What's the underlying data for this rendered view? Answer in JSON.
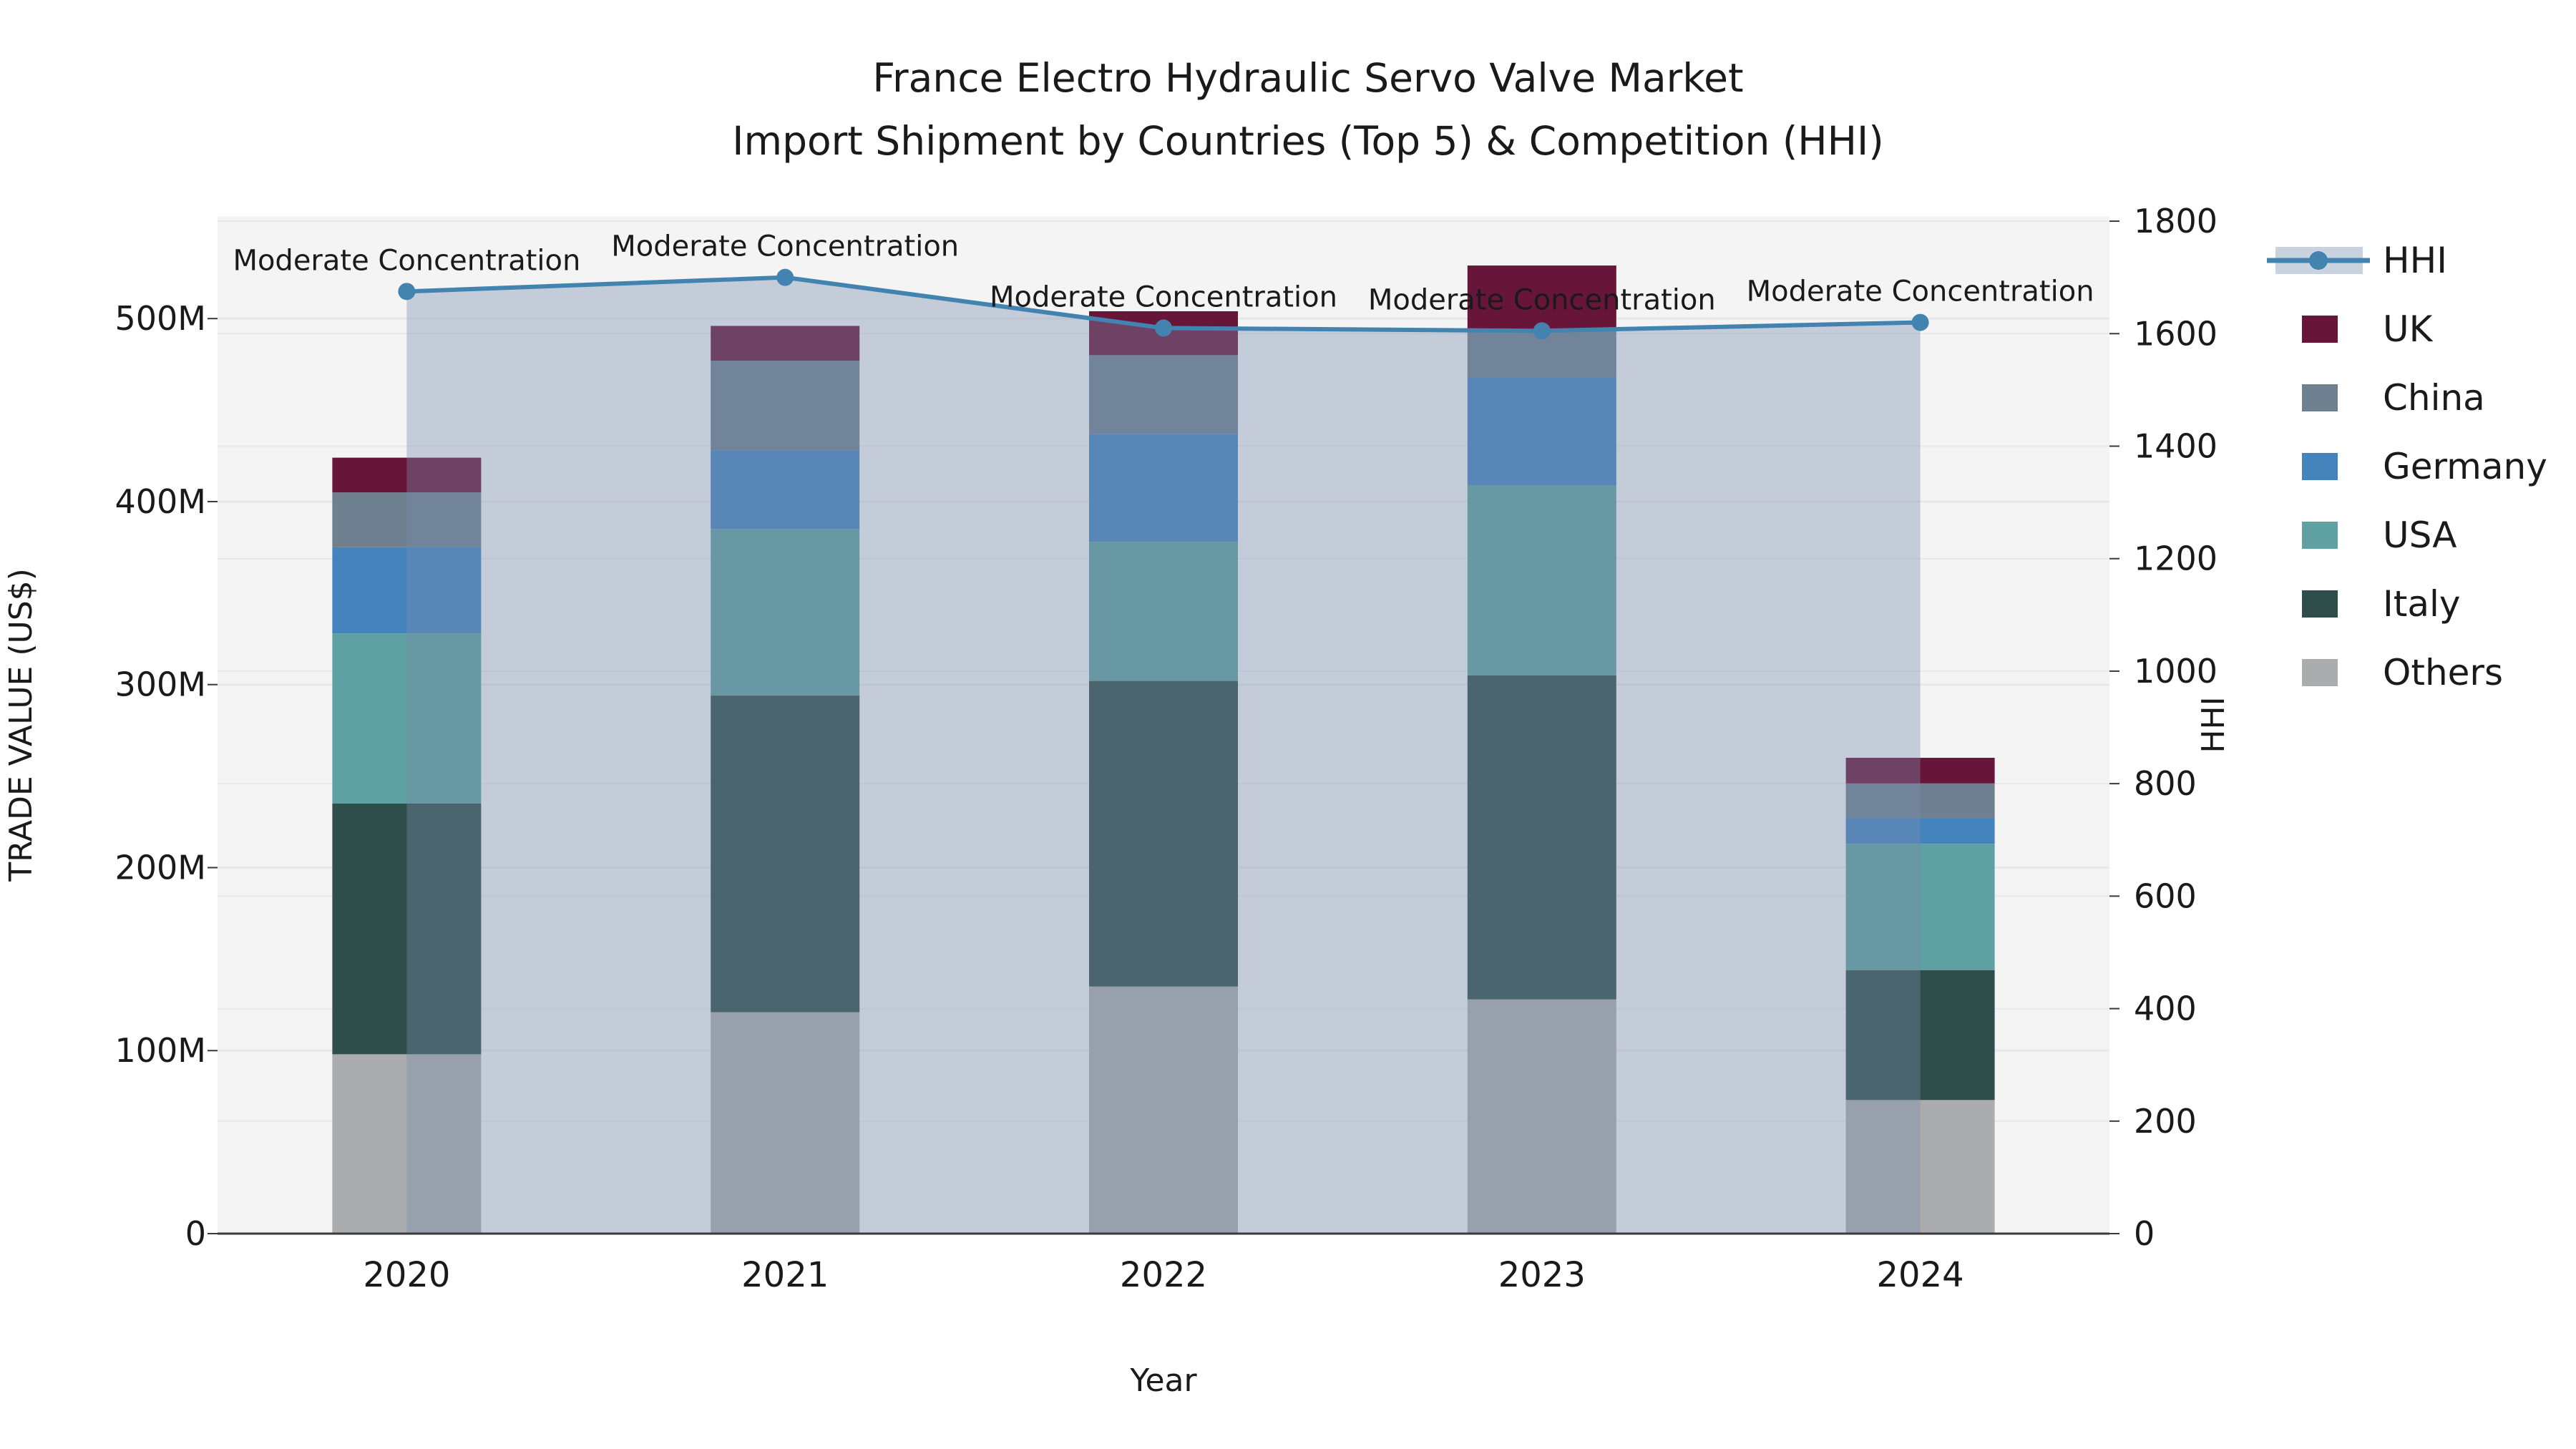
{
  "title": {
    "line1": "France Electro Hydraulic Servo Valve Market",
    "line2": "Import Shipment by Countries (Top 5) & Competition (HHI)"
  },
  "chart_data": {
    "type": "combo_stacked_bar_line",
    "title": "France Electro Hydraulic Servo Valve Market — Import Shipment by Countries (Top 5) & Competition (HHI)",
    "categories": [
      "2020",
      "2021",
      "2022",
      "2023",
      "2024"
    ],
    "value_unit": "Million US$",
    "series": [
      {
        "name": "Others",
        "color": "#abacae",
        "values": [
          98,
          121,
          135,
          128,
          73
        ]
      },
      {
        "name": "Italy",
        "color": "#2f4e4b",
        "values": [
          137,
          173,
          167,
          177,
          71
        ]
      },
      {
        "name": "USA",
        "color": "#5fa1a2",
        "values": [
          93,
          91,
          76,
          104,
          69
        ]
      },
      {
        "name": "Germany",
        "color": "#4583bd",
        "values": [
          47,
          43,
          59,
          59,
          14
        ]
      },
      {
        "name": "China",
        "color": "#6f8090",
        "values": [
          30,
          49,
          43,
          25,
          19
        ]
      },
      {
        "name": "UK",
        "color": "#67163a",
        "values": [
          19,
          19,
          24,
          36,
          14
        ]
      }
    ],
    "line_series": {
      "name": "HHI",
      "color": "#4383b0",
      "area_fill": "rgba(122,140,170,0.38)",
      "values": [
        1675,
        1700,
        1610,
        1605,
        1620
      ]
    },
    "annotations": [
      {
        "text": "Moderate Concentration",
        "category": "2020"
      },
      {
        "text": "Moderate Concentration",
        "category": "2021"
      },
      {
        "text": "Moderate Concentration",
        "category": "2022"
      },
      {
        "text": "Moderate Concentration",
        "category": "2023"
      },
      {
        "text": "Moderate Concentration",
        "category": "2024"
      }
    ],
    "xlabel": "Year",
    "ylabel_left": "TRADE VALUE (US$)",
    "ylabel_right": "HHI",
    "yticks_left": {
      "values": [
        0,
        100,
        200,
        300,
        400,
        500
      ],
      "labels": [
        "0",
        "100M",
        "200M",
        "300M",
        "400M",
        "500M"
      ]
    },
    "yticks_right": {
      "values": [
        0,
        200,
        400,
        600,
        800,
        1000,
        1200,
        1400,
        1600,
        1800
      ],
      "labels": [
        "0",
        "200",
        "400",
        "600",
        "800",
        "1000",
        "1200",
        "1400",
        "1600",
        "1800"
      ]
    },
    "ylim_left": [
      0,
      556
    ],
    "ylim_right": [
      0,
      1809
    ],
    "grid": true,
    "legend_position": "right",
    "legend": [
      "HHI",
      "UK",
      "China",
      "Germany",
      "USA",
      "Italy",
      "Others"
    ]
  },
  "style_colors": {
    "plot_bg": "#f4f4f5",
    "gridline": "#e8e8ea",
    "axis": "#3a3a3a",
    "text": "#1a1a1a",
    "hhi_legend_patch": "#c9d2df"
  }
}
